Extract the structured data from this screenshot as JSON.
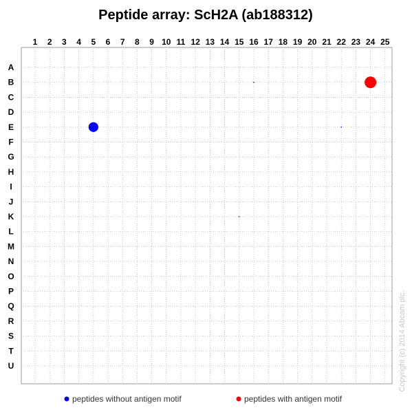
{
  "chart_data": {
    "type": "scatter",
    "title": "Peptide array: ScH2A (ab188312)",
    "xlabel": "",
    "ylabel": "",
    "x_categories": [
      "1",
      "2",
      "3",
      "4",
      "5",
      "6",
      "7",
      "8",
      "9",
      "10",
      "11",
      "12",
      "13",
      "14",
      "15",
      "16",
      "17",
      "18",
      "19",
      "20",
      "21",
      "22",
      "23",
      "24",
      "25"
    ],
    "y_categories": [
      "A",
      "B",
      "C",
      "D",
      "E",
      "F",
      "G",
      "H",
      "I",
      "J",
      "K",
      "L",
      "M",
      "N",
      "O",
      "P",
      "Q",
      "R",
      "S",
      "T",
      "U"
    ],
    "grid": true,
    "legend_position": "bottom",
    "series": [
      {
        "name": "peptides without antigen motif",
        "color": "#0000ff",
        "points": [
          {
            "x": "5",
            "y": "E",
            "size": 1.0
          },
          {
            "x": "16",
            "y": "B",
            "size": 0.1
          },
          {
            "x": "22",
            "y": "E",
            "size": 0.1
          },
          {
            "x": "15",
            "y": "K",
            "size": 0.1
          }
        ]
      },
      {
        "name": "peptides with antigen motif",
        "color": "#ff0000",
        "points": [
          {
            "x": "24",
            "y": "B",
            "size": 1.2
          }
        ]
      }
    ],
    "copyright": "Copyright (c) 2014 Abcam plc."
  }
}
